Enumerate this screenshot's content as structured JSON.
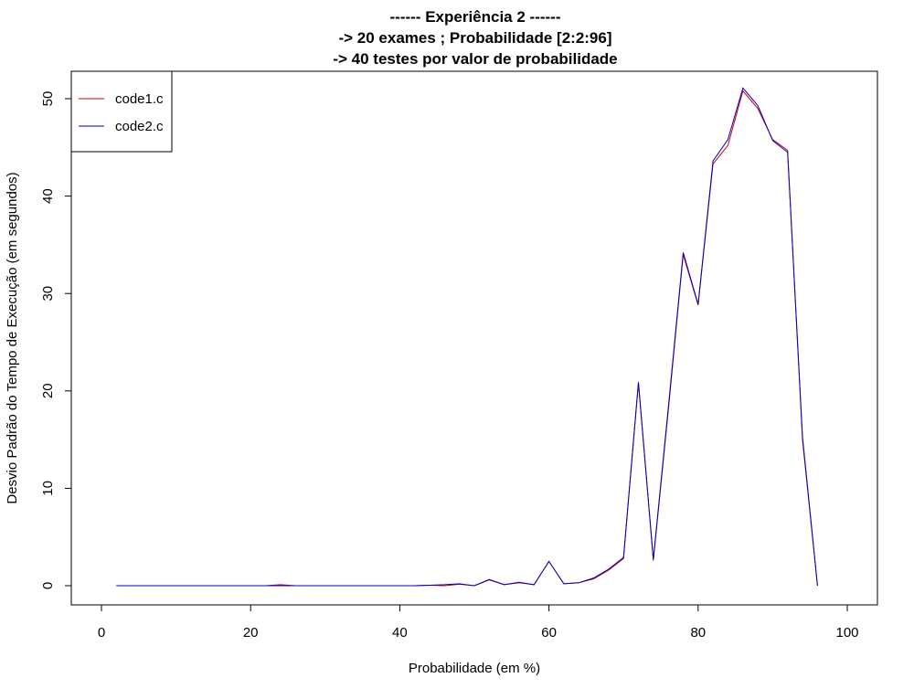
{
  "chart_data": {
    "type": "line",
    "title": "------ Experiência 2 ------",
    "subtitle_lines": [
      "-> 20 exames ; Probabilidade [2:2:96]",
      "-> 40 testes por valor de probabilidade"
    ],
    "xlabel": "Probabilidade (em %)",
    "ylabel": "Desvio Padrão do Tempo de Execução (em segundos)",
    "xlim": [
      0,
      100
    ],
    "ylim": [
      0,
      50
    ],
    "xticks": [
      0,
      20,
      40,
      60,
      80,
      100
    ],
    "yticks": [
      0,
      10,
      20,
      30,
      40,
      50
    ],
    "grid": false,
    "legend_position": "top-left",
    "x": [
      2,
      4,
      6,
      8,
      10,
      12,
      14,
      16,
      18,
      20,
      22,
      24,
      26,
      28,
      30,
      32,
      34,
      36,
      38,
      40,
      42,
      44,
      46,
      48,
      50,
      52,
      54,
      56,
      58,
      60,
      62,
      64,
      66,
      68,
      70,
      72,
      74,
      76,
      78,
      80,
      82,
      84,
      86,
      88,
      90,
      92,
      94,
      96
    ],
    "series": [
      {
        "name": "code1.c",
        "color": "#cc0000",
        "values": [
          0,
          0,
          0,
          0,
          0,
          0,
          0,
          0,
          0,
          0,
          0,
          0.1,
          0,
          0,
          0,
          0,
          0,
          0,
          0,
          0,
          0,
          0.05,
          0,
          0.15,
          0,
          0.6,
          0.1,
          0.3,
          0.1,
          2.5,
          0.2,
          0.3,
          0.7,
          1.6,
          2.8,
          20.8,
          2.6,
          18.0,
          34.0,
          28.8,
          43.3,
          45.2,
          50.8,
          49.0,
          45.8,
          44.7,
          15.0,
          0
        ]
      },
      {
        "name": "code2.c",
        "color": "#0000cc",
        "values": [
          0,
          0,
          0,
          0,
          0,
          0,
          0,
          0,
          0,
          0,
          0,
          0,
          0,
          0,
          0,
          0,
          0,
          0,
          0,
          0,
          0,
          0.05,
          0.1,
          0.2,
          0,
          0.65,
          0.1,
          0.35,
          0.1,
          2.5,
          0.2,
          0.3,
          0.8,
          1.7,
          2.9,
          20.9,
          2.7,
          18.3,
          34.2,
          28.9,
          43.6,
          45.8,
          51.1,
          49.3,
          45.7,
          44.5,
          15.3,
          0
        ]
      }
    ]
  }
}
